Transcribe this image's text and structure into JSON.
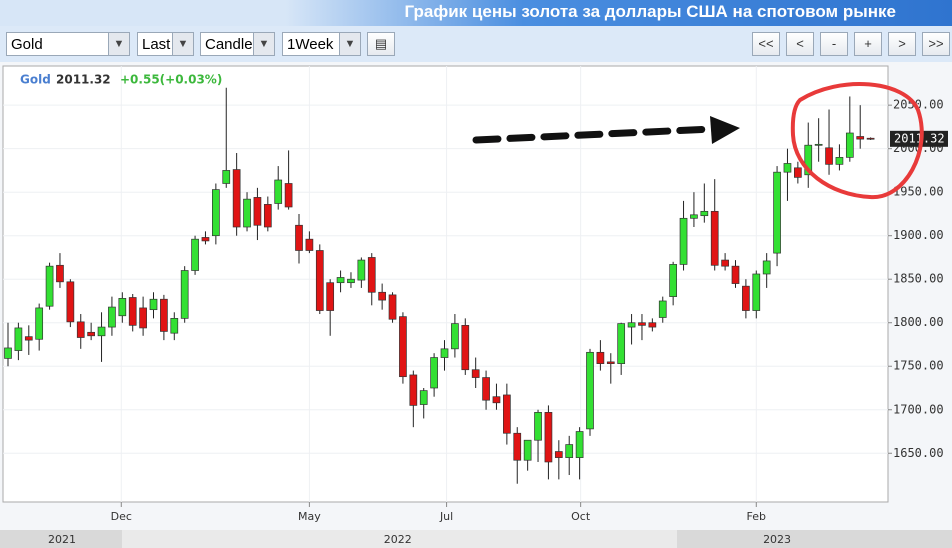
{
  "header": {
    "title": "График цены золота за доллары США на спотовом рынке"
  },
  "toolbar": {
    "selects": [
      "Gold",
      "Last",
      "Candle",
      "1Week"
    ],
    "buttons": [
      "<<",
      "<",
      "-",
      "+",
      ">",
      ">>"
    ]
  },
  "chart_data": {
    "type": "candlestick",
    "name": "Gold",
    "change": "+0.55(+0.03%)",
    "up_color": "#33e033",
    "down_color": "#e01414",
    "ylim": [
      1594,
      2095
    ],
    "yticks": [
      {
        "value": 1650,
        "label": "1650.00"
      },
      {
        "value": 1700,
        "label": "1700.00"
      },
      {
        "value": 1750,
        "label": "1750.00"
      },
      {
        "value": 1800,
        "label": "1800.00"
      },
      {
        "value": 1850,
        "label": "1850.00"
      },
      {
        "value": 1900,
        "label": "1900.00"
      },
      {
        "value": 1950,
        "label": "1950.00"
      },
      {
        "value": 2000,
        "label": "2000.00"
      },
      {
        "value": 2050,
        "label": "2050.00"
      }
    ],
    "xticks": [
      {
        "value": 10.9,
        "label": "Dec"
      },
      {
        "value": 29,
        "label": "May"
      },
      {
        "value": 42.2,
        "label": "Jul"
      },
      {
        "value": 55.1,
        "label": "Oct"
      },
      {
        "value": 72,
        "label": "Feb"
      }
    ],
    "year_labels": [
      {
        "value": 5.2,
        "label": "2021"
      },
      {
        "value": 37.5,
        "label": "2022"
      },
      {
        "value": 74,
        "label": "2023"
      }
    ],
    "grid": true,
    "values": [
      [
        1759,
        1800,
        1750,
        1771
      ],
      [
        1768,
        1800,
        1757,
        1794
      ],
      [
        1784,
        1797,
        1763,
        1780
      ],
      [
        1781,
        1822,
        1768,
        1817
      ],
      [
        1819,
        1869,
        1815,
        1865
      ],
      [
        1866,
        1880,
        1840,
        1847
      ],
      [
        1847,
        1850,
        1795,
        1801
      ],
      [
        1801,
        1810,
        1770,
        1783
      ],
      [
        1789,
        1800,
        1780,
        1785
      ],
      [
        1785,
        1812,
        1755,
        1795
      ],
      [
        1795,
        1830,
        1785,
        1818
      ],
      [
        1808,
        1835,
        1800,
        1828
      ],
      [
        1829,
        1833,
        1790,
        1797
      ],
      [
        1817,
        1830,
        1785,
        1794
      ],
      [
        1815,
        1835,
        1805,
        1827
      ],
      [
        1827,
        1832,
        1780,
        1790
      ],
      [
        1788,
        1812,
        1780,
        1805
      ],
      [
        1805,
        1865,
        1800,
        1860
      ],
      [
        1860,
        1900,
        1855,
        1896
      ],
      [
        1898,
        1905,
        1890,
        1894
      ],
      [
        1900,
        1960,
        1890,
        1953
      ],
      [
        1960,
        2070,
        1955,
        1975
      ],
      [
        1976,
        1995,
        1900,
        1910
      ],
      [
        1910,
        1950,
        1905,
        1942
      ],
      [
        1944,
        1955,
        1895,
        1912
      ],
      [
        1936,
        1945,
        1905,
        1910
      ],
      [
        1937,
        1980,
        1930,
        1964
      ],
      [
        1960,
        1998,
        1930,
        1933
      ],
      [
        1912,
        1925,
        1868,
        1883
      ],
      [
        1896,
        1905,
        1880,
        1883
      ],
      [
        1883,
        1890,
        1810,
        1814
      ],
      [
        1846,
        1850,
        1785,
        1814
      ],
      [
        1846,
        1860,
        1835,
        1852
      ],
      [
        1846,
        1858,
        1840,
        1850
      ],
      [
        1849,
        1875,
        1840,
        1872
      ],
      [
        1875,
        1880,
        1820,
        1835
      ],
      [
        1835,
        1845,
        1815,
        1826
      ],
      [
        1832,
        1835,
        1800,
        1804
      ],
      [
        1807,
        1812,
        1730,
        1738
      ],
      [
        1740,
        1745,
        1680,
        1705
      ],
      [
        1706,
        1725,
        1690,
        1722
      ],
      [
        1725,
        1765,
        1715,
        1760
      ],
      [
        1760,
        1780,
        1745,
        1770
      ],
      [
        1770,
        1810,
        1760,
        1799
      ],
      [
        1797,
        1805,
        1740,
        1746
      ],
      [
        1746,
        1760,
        1725,
        1737
      ],
      [
        1737,
        1745,
        1700,
        1711
      ],
      [
        1715,
        1730,
        1700,
        1708
      ],
      [
        1717,
        1730,
        1660,
        1673
      ],
      [
        1673,
        1680,
        1615,
        1642
      ],
      [
        1642,
        1665,
        1630,
        1665
      ],
      [
        1665,
        1700,
        1640,
        1697
      ],
      [
        1697,
        1705,
        1620,
        1640
      ],
      [
        1652,
        1665,
        1620,
        1645
      ],
      [
        1645,
        1670,
        1625,
        1660
      ],
      [
        1645,
        1680,
        1620,
        1675
      ],
      [
        1678,
        1770,
        1670,
        1766
      ],
      [
        1766,
        1780,
        1745,
        1753
      ],
      [
        1755,
        1765,
        1730,
        1753
      ],
      [
        1753,
        1800,
        1740,
        1799
      ],
      [
        1795,
        1810,
        1775,
        1800
      ],
      [
        1800,
        1810,
        1780,
        1797
      ],
      [
        1800,
        1805,
        1790,
        1795
      ],
      [
        1806,
        1830,
        1800,
        1825
      ],
      [
        1830,
        1870,
        1820,
        1867
      ],
      [
        1867,
        1940,
        1860,
        1920
      ],
      [
        1920,
        1950,
        1910,
        1924
      ],
      [
        1923,
        1960,
        1915,
        1928
      ],
      [
        1928,
        1965,
        1860,
        1866
      ],
      [
        1872,
        1880,
        1860,
        1865
      ],
      [
        1865,
        1872,
        1840,
        1845
      ],
      [
        1842,
        1850,
        1805,
        1814
      ],
      [
        1814,
        1860,
        1805,
        1856
      ],
      [
        1856,
        1880,
        1840,
        1871
      ],
      [
        1880,
        1980,
        1865,
        1973
      ],
      [
        1973,
        2000,
        1940,
        1983
      ],
      [
        1978,
        1985,
        1960,
        1967
      ],
      [
        1970,
        2030,
        1955,
        2004
      ],
      [
        2004,
        2035,
        1985,
        2005
      ],
      [
        2001,
        2045,
        1970,
        1982
      ],
      [
        1982,
        2005,
        1975,
        1990
      ],
      [
        1990,
        2060,
        1985,
        2018
      ],
      [
        2014,
        2050,
        2000,
        2011
      ],
      [
        2012,
        2013,
        2010,
        2011.32
      ]
    ]
  }
}
